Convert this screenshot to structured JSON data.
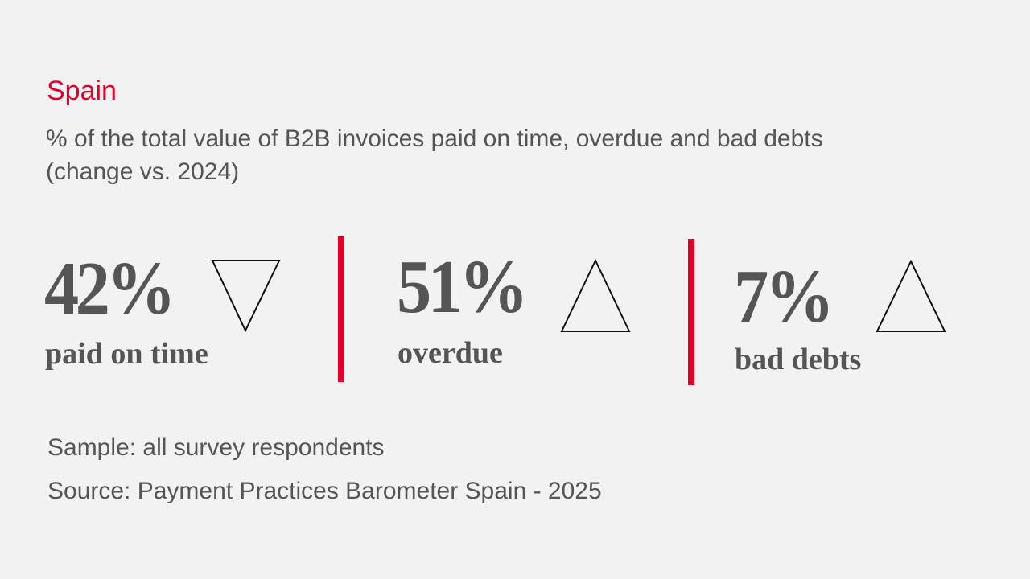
{
  "title": "Spain",
  "subtitle_line1": "% of the total value of B2B invoices paid on time, overdue and bad debts",
  "subtitle_line2": "(change vs. 2024)",
  "colors": {
    "accent": "#e0002a",
    "text": "#555555",
    "background": "#f2f2f2"
  },
  "chart_data": {
    "type": "table",
    "metrics": [
      {
        "value": "42%",
        "label": "paid on time",
        "change": "down",
        "icon": "triangle-down-icon"
      },
      {
        "value": "51%",
        "label": "overdue",
        "change": "up",
        "icon": "triangle-up-icon"
      },
      {
        "value": "7%",
        "label": "bad debts",
        "change": "up",
        "icon": "triangle-up-icon"
      }
    ]
  },
  "footer": {
    "sample": "Sample: all survey respondents",
    "source": "Source: Payment Practices Barometer Spain - 2025"
  }
}
